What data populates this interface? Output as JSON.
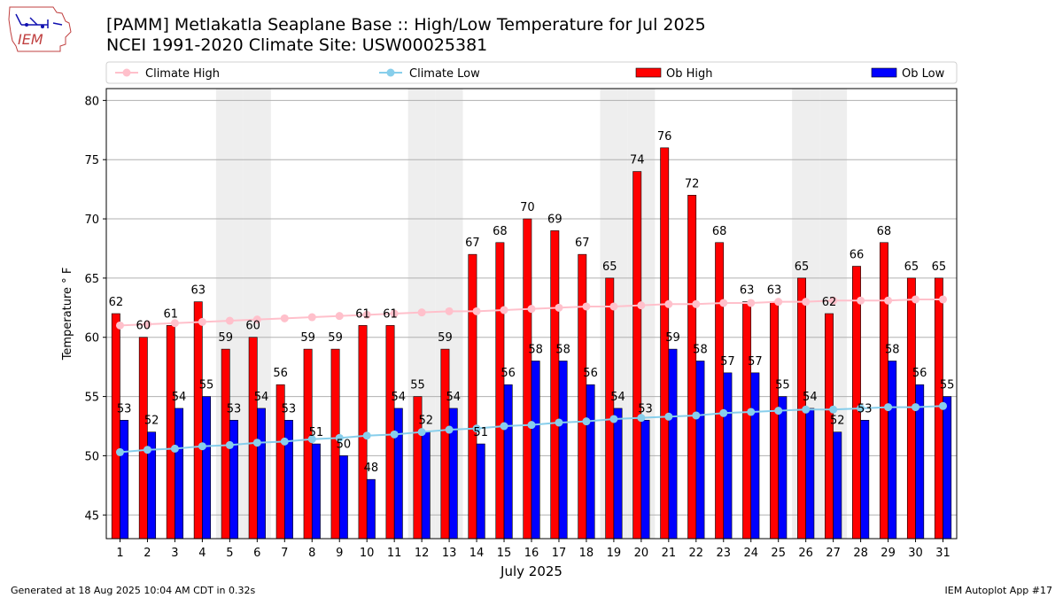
{
  "header": {
    "title": "[PAMM] Metlakatla Seaplane Base :: High/Low Temperature for Jul 2025",
    "subtitle": "NCEI 1991-2020 Climate Site: USW00025381",
    "logo_text": "IEM"
  },
  "footer": {
    "generated": "Generated at 18 Aug 2025 10:04 AM CDT in 0.32s",
    "app": "IEM Autoplot App #17"
  },
  "colors": {
    "ob_high": "#ff0000",
    "ob_low": "#0000ff",
    "climate_high": "#ffc0cb",
    "climate_low": "#87ceeb",
    "weekend_band": "#eeeeee",
    "grid": "#b0b0b0"
  },
  "chart_data": {
    "type": "bar",
    "xlabel": "July 2025",
    "ylabel": "Temperature ° F",
    "ylim": [
      43,
      81
    ],
    "yticks": [
      45,
      50,
      55,
      60,
      65,
      70,
      75,
      80
    ],
    "grid": "horizontal",
    "legend_position": "top",
    "weekend_days": [
      5,
      6,
      12,
      13,
      19,
      20,
      26,
      27
    ],
    "categories": [
      "1",
      "2",
      "3",
      "4",
      "5",
      "6",
      "7",
      "8",
      "9",
      "10",
      "11",
      "12",
      "13",
      "14",
      "15",
      "16",
      "17",
      "18",
      "19",
      "20",
      "21",
      "22",
      "23",
      "24",
      "25",
      "26",
      "27",
      "28",
      "29",
      "30",
      "31"
    ],
    "series": [
      {
        "name": "Ob High",
        "kind": "bar",
        "color": "#ff0000",
        "values": [
          62,
          60,
          61,
          63,
          59,
          60,
          56,
          59,
          59,
          61,
          61,
          55,
          59,
          67,
          68,
          70,
          69,
          67,
          65,
          74,
          76,
          72,
          68,
          63,
          63,
          65,
          62,
          66,
          68,
          65,
          65
        ]
      },
      {
        "name": "Ob Low",
        "kind": "bar",
        "color": "#0000ff",
        "values": [
          53,
          52,
          54,
          55,
          53,
          54,
          53,
          51,
          50,
          48,
          54,
          52,
          54,
          51,
          56,
          58,
          58,
          56,
          54,
          53,
          59,
          58,
          57,
          57,
          55,
          54,
          52,
          53,
          58,
          56,
          55
        ]
      },
      {
        "name": "Climate High",
        "kind": "line",
        "color": "#ffc0cb",
        "values": [
          61.0,
          61.1,
          61.2,
          61.3,
          61.4,
          61.5,
          61.6,
          61.7,
          61.8,
          61.9,
          62.0,
          62.1,
          62.2,
          62.2,
          62.3,
          62.4,
          62.5,
          62.6,
          62.6,
          62.7,
          62.8,
          62.8,
          62.9,
          62.9,
          63.0,
          63.0,
          63.1,
          63.1,
          63.1,
          63.2,
          63.2
        ]
      },
      {
        "name": "Climate Low",
        "kind": "line",
        "color": "#87ceeb",
        "values": [
          50.3,
          50.5,
          50.6,
          50.8,
          50.9,
          51.1,
          51.2,
          51.4,
          51.5,
          51.7,
          51.8,
          52.0,
          52.2,
          52.3,
          52.5,
          52.6,
          52.8,
          52.9,
          53.1,
          53.2,
          53.3,
          53.4,
          53.6,
          53.7,
          53.8,
          53.9,
          53.9,
          54.0,
          54.1,
          54.1,
          54.2
        ]
      }
    ]
  }
}
